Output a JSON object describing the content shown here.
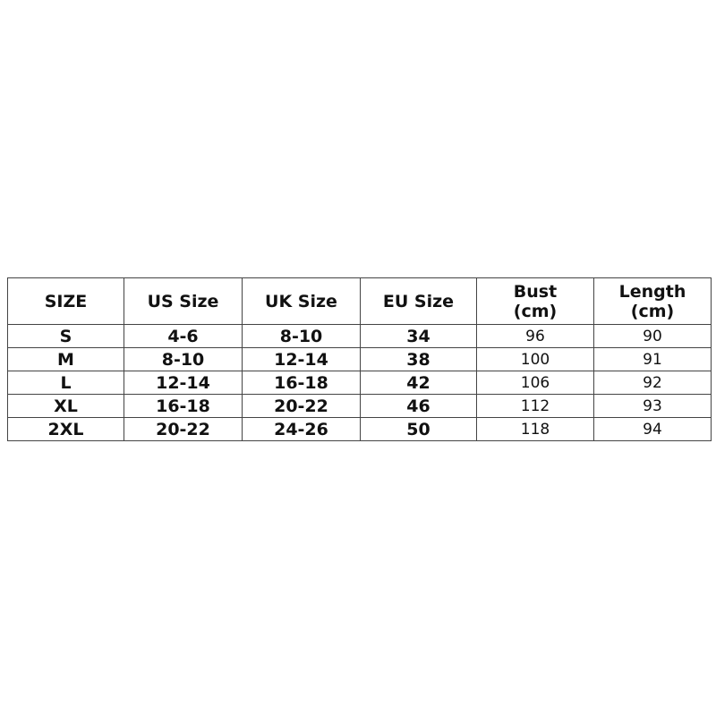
{
  "table": {
    "headers": [
      "SIZE",
      "US Size",
      "UK Size",
      "EU Size",
      "Bust (cm)",
      "Length (cm)"
    ],
    "rows": [
      [
        "S",
        "4-6",
        "8-10",
        "34",
        "96",
        "90"
      ],
      [
        "M",
        "8-10",
        "12-14",
        "38",
        "100",
        "91"
      ],
      [
        "L",
        "12-14",
        "16-18",
        "42",
        "106",
        "92"
      ],
      [
        "XL",
        "16-18",
        "20-22",
        "46",
        "112",
        "93"
      ],
      [
        "2XL",
        "20-22",
        "24-26",
        "50",
        "118",
        "94"
      ]
    ]
  }
}
